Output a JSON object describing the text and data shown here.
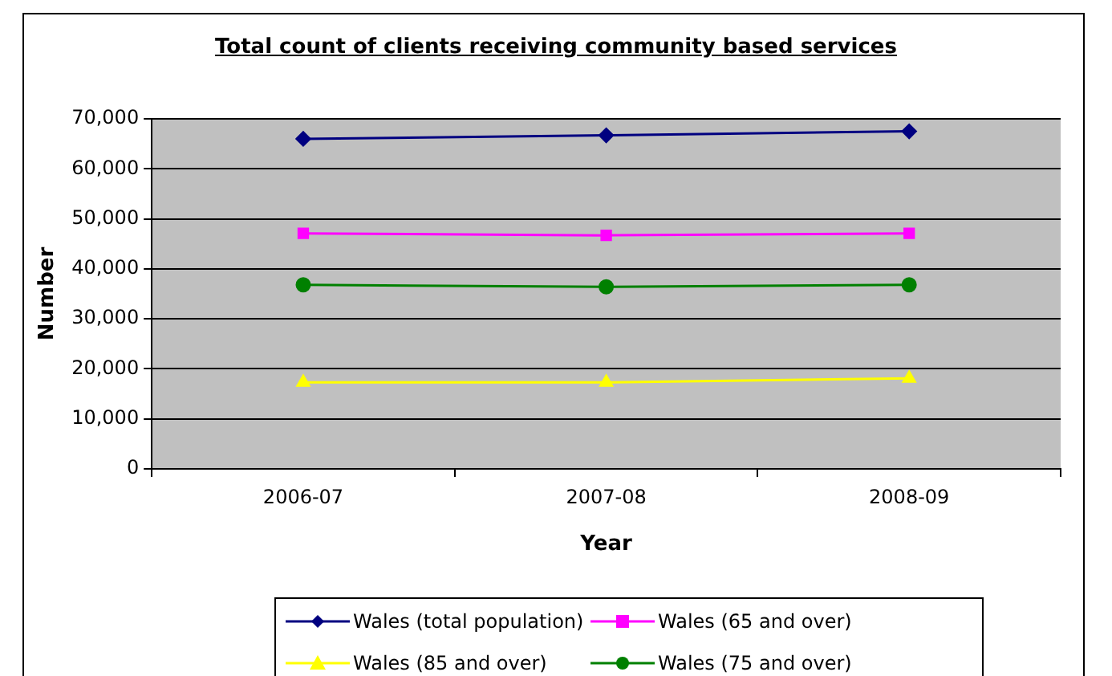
{
  "chart_data": {
    "type": "line",
    "title": "Total count of clients receiving community based services",
    "xlabel": "Year",
    "ylabel": "Number",
    "categories": [
      "2006-07",
      "2007-08",
      "2008-09"
    ],
    "series": [
      {
        "name": "Wales (total population)",
        "color": "#000080",
        "marker": "diamond",
        "values": [
          66000,
          66700,
          67500
        ]
      },
      {
        "name": "Wales (65 and over)",
        "color": "#ff00ff",
        "marker": "square",
        "values": [
          47100,
          46700,
          47100
        ]
      },
      {
        "name": "Wales (85 and over)",
        "color": "#ffff00",
        "marker": "triangle",
        "values": [
          17300,
          17300,
          18100
        ]
      },
      {
        "name": "Wales (75 and over)",
        "color": "#008000",
        "marker": "circle",
        "values": [
          36800,
          36400,
          36800
        ]
      }
    ],
    "ylim": [
      0,
      70000
    ],
    "yticks": [
      {
        "value": 0,
        "label": "0"
      },
      {
        "value": 10000,
        "label": "10,000"
      },
      {
        "value": 20000,
        "label": "20,000"
      },
      {
        "value": 30000,
        "label": "30,000"
      },
      {
        "value": 40000,
        "label": "40,000"
      },
      {
        "value": 50000,
        "label": "50,000"
      },
      {
        "value": 60000,
        "label": "60,000"
      },
      {
        "value": 70000,
        "label": "70,000"
      }
    ],
    "grid": "y",
    "legend": "bottom"
  }
}
